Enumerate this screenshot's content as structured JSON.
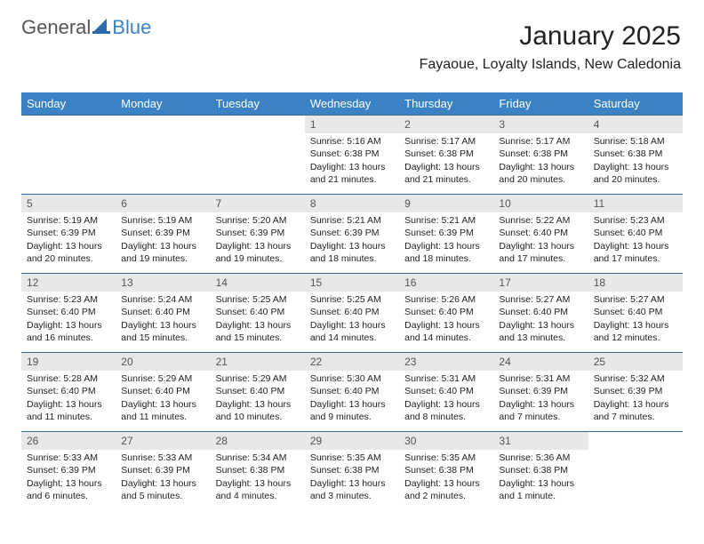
{
  "logo": {
    "text1": "General",
    "text2": "Blue"
  },
  "header": {
    "title": "January 2025",
    "subtitle": "Fayaoue, Loyalty Islands, New Caledonia"
  },
  "colors": {
    "header_bg": "#3a82c4",
    "header_text": "#ffffff",
    "row_border": "#3a6a95",
    "daynum_bg": "#e8e8e8",
    "daynum_text": "#555555",
    "body_text": "#222222",
    "page_bg": "#ffffff"
  },
  "weekdays": [
    "Sunday",
    "Monday",
    "Tuesday",
    "Wednesday",
    "Thursday",
    "Friday",
    "Saturday"
  ],
  "weeks": [
    [
      null,
      null,
      null,
      {
        "n": "1",
        "sr": "5:16 AM",
        "ss": "6:38 PM",
        "dl": "13 hours and 21 minutes."
      },
      {
        "n": "2",
        "sr": "5:17 AM",
        "ss": "6:38 PM",
        "dl": "13 hours and 21 minutes."
      },
      {
        "n": "3",
        "sr": "5:17 AM",
        "ss": "6:38 PM",
        "dl": "13 hours and 20 minutes."
      },
      {
        "n": "4",
        "sr": "5:18 AM",
        "ss": "6:38 PM",
        "dl": "13 hours and 20 minutes."
      }
    ],
    [
      {
        "n": "5",
        "sr": "5:19 AM",
        "ss": "6:39 PM",
        "dl": "13 hours and 20 minutes."
      },
      {
        "n": "6",
        "sr": "5:19 AM",
        "ss": "6:39 PM",
        "dl": "13 hours and 19 minutes."
      },
      {
        "n": "7",
        "sr": "5:20 AM",
        "ss": "6:39 PM",
        "dl": "13 hours and 19 minutes."
      },
      {
        "n": "8",
        "sr": "5:21 AM",
        "ss": "6:39 PM",
        "dl": "13 hours and 18 minutes."
      },
      {
        "n": "9",
        "sr": "5:21 AM",
        "ss": "6:39 PM",
        "dl": "13 hours and 18 minutes."
      },
      {
        "n": "10",
        "sr": "5:22 AM",
        "ss": "6:40 PM",
        "dl": "13 hours and 17 minutes."
      },
      {
        "n": "11",
        "sr": "5:23 AM",
        "ss": "6:40 PM",
        "dl": "13 hours and 17 minutes."
      }
    ],
    [
      {
        "n": "12",
        "sr": "5:23 AM",
        "ss": "6:40 PM",
        "dl": "13 hours and 16 minutes."
      },
      {
        "n": "13",
        "sr": "5:24 AM",
        "ss": "6:40 PM",
        "dl": "13 hours and 15 minutes."
      },
      {
        "n": "14",
        "sr": "5:25 AM",
        "ss": "6:40 PM",
        "dl": "13 hours and 15 minutes."
      },
      {
        "n": "15",
        "sr": "5:25 AM",
        "ss": "6:40 PM",
        "dl": "13 hours and 14 minutes."
      },
      {
        "n": "16",
        "sr": "5:26 AM",
        "ss": "6:40 PM",
        "dl": "13 hours and 14 minutes."
      },
      {
        "n": "17",
        "sr": "5:27 AM",
        "ss": "6:40 PM",
        "dl": "13 hours and 13 minutes."
      },
      {
        "n": "18",
        "sr": "5:27 AM",
        "ss": "6:40 PM",
        "dl": "13 hours and 12 minutes."
      }
    ],
    [
      {
        "n": "19",
        "sr": "5:28 AM",
        "ss": "6:40 PM",
        "dl": "13 hours and 11 minutes."
      },
      {
        "n": "20",
        "sr": "5:29 AM",
        "ss": "6:40 PM",
        "dl": "13 hours and 11 minutes."
      },
      {
        "n": "21",
        "sr": "5:29 AM",
        "ss": "6:40 PM",
        "dl": "13 hours and 10 minutes."
      },
      {
        "n": "22",
        "sr": "5:30 AM",
        "ss": "6:40 PM",
        "dl": "13 hours and 9 minutes."
      },
      {
        "n": "23",
        "sr": "5:31 AM",
        "ss": "6:40 PM",
        "dl": "13 hours and 8 minutes."
      },
      {
        "n": "24",
        "sr": "5:31 AM",
        "ss": "6:39 PM",
        "dl": "13 hours and 7 minutes."
      },
      {
        "n": "25",
        "sr": "5:32 AM",
        "ss": "6:39 PM",
        "dl": "13 hours and 7 minutes."
      }
    ],
    [
      {
        "n": "26",
        "sr": "5:33 AM",
        "ss": "6:39 PM",
        "dl": "13 hours and 6 minutes."
      },
      {
        "n": "27",
        "sr": "5:33 AM",
        "ss": "6:39 PM",
        "dl": "13 hours and 5 minutes."
      },
      {
        "n": "28",
        "sr": "5:34 AM",
        "ss": "6:38 PM",
        "dl": "13 hours and 4 minutes."
      },
      {
        "n": "29",
        "sr": "5:35 AM",
        "ss": "6:38 PM",
        "dl": "13 hours and 3 minutes."
      },
      {
        "n": "30",
        "sr": "5:35 AM",
        "ss": "6:38 PM",
        "dl": "13 hours and 2 minutes."
      },
      {
        "n": "31",
        "sr": "5:36 AM",
        "ss": "6:38 PM",
        "dl": "13 hours and 1 minute."
      },
      null
    ]
  ],
  "labels": {
    "sunrise": "Sunrise: ",
    "sunset": "Sunset: ",
    "daylight": "Daylight: "
  }
}
